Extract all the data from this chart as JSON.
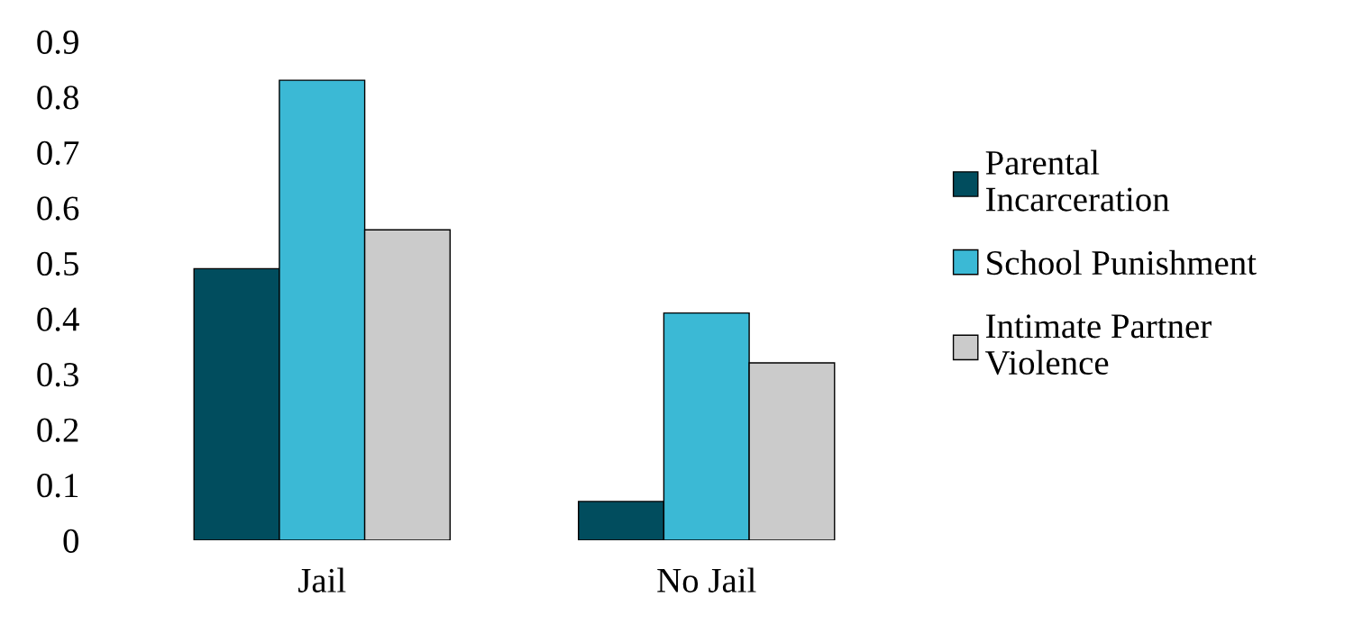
{
  "chart_data": {
    "type": "bar",
    "categories": [
      "Jail",
      "No Jail"
    ],
    "series": [
      {
        "name": "Parental Incarceration",
        "color": "#014d5e",
        "values": [
          0.49,
          0.07
        ]
      },
      {
        "name": "School Punishment",
        "color": "#3bb9d5",
        "values": [
          0.83,
          0.41
        ]
      },
      {
        "name": "Intimate Partner Violence",
        "color": "#cbcbcb",
        "values": [
          0.56,
          0.32
        ]
      }
    ],
    "ylim": [
      0,
      0.9
    ],
    "yticks": [
      0,
      0.1,
      0.2,
      0.3,
      0.4,
      0.5,
      0.6,
      0.7,
      0.8,
      0.9
    ],
    "grid": false,
    "legend": "right"
  }
}
